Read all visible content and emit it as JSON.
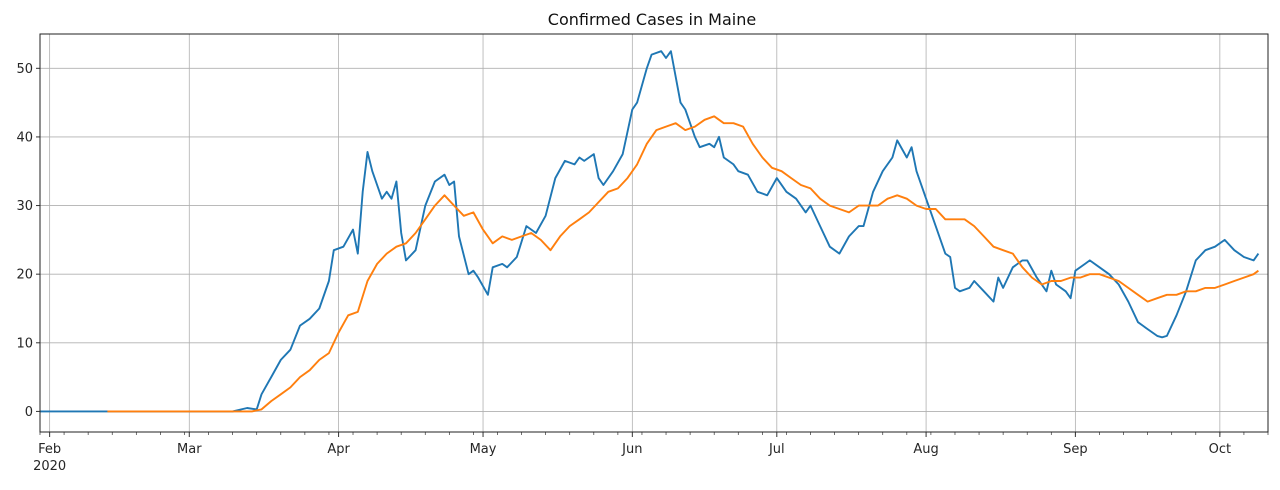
{
  "chart_data": {
    "type": "line",
    "title": "Confirmed Cases in  Maine",
    "xlabel": "",
    "ylabel": "",
    "grid": true,
    "xlim": [
      "2020-01-30",
      "2020-10-11"
    ],
    "ylim": [
      -3,
      55
    ],
    "yticks": [
      0,
      10,
      20,
      30,
      40,
      50
    ],
    "xticks": [
      {
        "date": "2020-02-01",
        "label": "Feb",
        "sublabel": "2020"
      },
      {
        "date": "2020-03-01",
        "label": "Mar"
      },
      {
        "date": "2020-04-01",
        "label": "Apr"
      },
      {
        "date": "2020-05-01",
        "label": "May"
      },
      {
        "date": "2020-06-01",
        "label": "Jun"
      },
      {
        "date": "2020-07-01",
        "label": "Jul"
      },
      {
        "date": "2020-08-01",
        "label": "Aug"
      },
      {
        "date": "2020-09-01",
        "label": "Sep"
      },
      {
        "date": "2020-10-01",
        "label": "Oct"
      }
    ],
    "series": [
      {
        "color": "#1f77b4",
        "points": [
          [
            "2020-01-30",
            0
          ],
          [
            "2020-02-14",
            0
          ],
          [
            "2020-03-10",
            0
          ],
          [
            "2020-03-13",
            0.5
          ],
          [
            "2020-03-15",
            0.3
          ],
          [
            "2020-03-16",
            2.5
          ],
          [
            "2020-03-18",
            5
          ],
          [
            "2020-03-20",
            7.5
          ],
          [
            "2020-03-22",
            9
          ],
          [
            "2020-03-24",
            12.5
          ],
          [
            "2020-03-26",
            13.5
          ],
          [
            "2020-03-28",
            15
          ],
          [
            "2020-03-30",
            19
          ],
          [
            "2020-03-31",
            23.5
          ],
          [
            "2020-04-02",
            24
          ],
          [
            "2020-04-04",
            26.5
          ],
          [
            "2020-04-05",
            23
          ],
          [
            "2020-04-06",
            32
          ],
          [
            "2020-04-07",
            37.8
          ],
          [
            "2020-04-08",
            35
          ],
          [
            "2020-04-10",
            31
          ],
          [
            "2020-04-11",
            32
          ],
          [
            "2020-04-12",
            31
          ],
          [
            "2020-04-13",
            33.5
          ],
          [
            "2020-04-14",
            26
          ],
          [
            "2020-04-15",
            22
          ],
          [
            "2020-04-17",
            23.5
          ],
          [
            "2020-04-19",
            30
          ],
          [
            "2020-04-21",
            33.5
          ],
          [
            "2020-04-23",
            34.5
          ],
          [
            "2020-04-24",
            33
          ],
          [
            "2020-04-25",
            33.5
          ],
          [
            "2020-04-26",
            25.5
          ],
          [
            "2020-04-28",
            20
          ],
          [
            "2020-04-29",
            20.5
          ],
          [
            "2020-04-30",
            19.5
          ],
          [
            "2020-05-02",
            17
          ],
          [
            "2020-05-03",
            21
          ],
          [
            "2020-05-05",
            21.5
          ],
          [
            "2020-05-06",
            21
          ],
          [
            "2020-05-08",
            22.5
          ],
          [
            "2020-05-10",
            27
          ],
          [
            "2020-05-12",
            26
          ],
          [
            "2020-05-14",
            28.5
          ],
          [
            "2020-05-16",
            34
          ],
          [
            "2020-05-18",
            36.5
          ],
          [
            "2020-05-20",
            36
          ],
          [
            "2020-05-21",
            37
          ],
          [
            "2020-05-22",
            36.5
          ],
          [
            "2020-05-24",
            37.5
          ],
          [
            "2020-05-25",
            34
          ],
          [
            "2020-05-26",
            33
          ],
          [
            "2020-05-28",
            35
          ],
          [
            "2020-05-30",
            37.5
          ],
          [
            "2020-06-01",
            44
          ],
          [
            "2020-06-02",
            45
          ],
          [
            "2020-06-04",
            50
          ],
          [
            "2020-06-05",
            52
          ],
          [
            "2020-06-07",
            52.5
          ],
          [
            "2020-06-08",
            51.5
          ],
          [
            "2020-06-09",
            52.5
          ],
          [
            "2020-06-11",
            45
          ],
          [
            "2020-06-12",
            44
          ],
          [
            "2020-06-14",
            40
          ],
          [
            "2020-06-15",
            38.5
          ],
          [
            "2020-06-17",
            39
          ],
          [
            "2020-06-18",
            38.5
          ],
          [
            "2020-06-19",
            40
          ],
          [
            "2020-06-20",
            37
          ],
          [
            "2020-06-22",
            36
          ],
          [
            "2020-06-23",
            35
          ],
          [
            "2020-06-25",
            34.5
          ],
          [
            "2020-06-27",
            32
          ],
          [
            "2020-06-29",
            31.5
          ],
          [
            "2020-07-01",
            34
          ],
          [
            "2020-07-03",
            32
          ],
          [
            "2020-07-05",
            31
          ],
          [
            "2020-07-07",
            29
          ],
          [
            "2020-07-08",
            30
          ],
          [
            "2020-07-10",
            27
          ],
          [
            "2020-07-12",
            24
          ],
          [
            "2020-07-14",
            23
          ],
          [
            "2020-07-16",
            25.5
          ],
          [
            "2020-07-18",
            27
          ],
          [
            "2020-07-19",
            27
          ],
          [
            "2020-07-21",
            32
          ],
          [
            "2020-07-23",
            35
          ],
          [
            "2020-07-25",
            37
          ],
          [
            "2020-07-26",
            39.5
          ],
          [
            "2020-07-28",
            37
          ],
          [
            "2020-07-29",
            38.5
          ],
          [
            "2020-07-30",
            35
          ],
          [
            "2020-08-01",
            31
          ],
          [
            "2020-08-03",
            27
          ],
          [
            "2020-08-05",
            23
          ],
          [
            "2020-08-06",
            22.5
          ],
          [
            "2020-08-07",
            18
          ],
          [
            "2020-08-08",
            17.5
          ],
          [
            "2020-08-10",
            18
          ],
          [
            "2020-08-11",
            19
          ],
          [
            "2020-08-13",
            17.5
          ],
          [
            "2020-08-15",
            16
          ],
          [
            "2020-08-16",
            19.5
          ],
          [
            "2020-08-17",
            18
          ],
          [
            "2020-08-19",
            21
          ],
          [
            "2020-08-21",
            22
          ],
          [
            "2020-08-22",
            22
          ],
          [
            "2020-08-24",
            19.5
          ],
          [
            "2020-08-26",
            17.5
          ],
          [
            "2020-08-27",
            20.5
          ],
          [
            "2020-08-28",
            18.5
          ],
          [
            "2020-08-30",
            17.5
          ],
          [
            "2020-08-31",
            16.5
          ],
          [
            "2020-09-01",
            20.5
          ],
          [
            "2020-09-03",
            21.5
          ],
          [
            "2020-09-04",
            22
          ],
          [
            "2020-09-06",
            21
          ],
          [
            "2020-09-08",
            20
          ],
          [
            "2020-09-10",
            18.5
          ],
          [
            "2020-09-12",
            16
          ],
          [
            "2020-09-14",
            13
          ],
          [
            "2020-09-16",
            12
          ],
          [
            "2020-09-18",
            11
          ],
          [
            "2020-09-19",
            10.8
          ],
          [
            "2020-09-20",
            11
          ],
          [
            "2020-09-22",
            14
          ],
          [
            "2020-09-24",
            17.5
          ],
          [
            "2020-09-26",
            22
          ],
          [
            "2020-09-28",
            23.5
          ],
          [
            "2020-09-30",
            24
          ],
          [
            "2020-10-02",
            25
          ],
          [
            "2020-10-04",
            23.5
          ],
          [
            "2020-10-06",
            22.5
          ],
          [
            "2020-10-08",
            22
          ],
          [
            "2020-10-09",
            23
          ]
        ]
      },
      {
        "color": "#ff7f0e",
        "points": [
          [
            "2020-02-13",
            0
          ],
          [
            "2020-03-14",
            0
          ],
          [
            "2020-03-16",
            0.3
          ],
          [
            "2020-03-18",
            1.5
          ],
          [
            "2020-03-20",
            2.5
          ],
          [
            "2020-03-22",
            3.5
          ],
          [
            "2020-03-24",
            5
          ],
          [
            "2020-03-26",
            6
          ],
          [
            "2020-03-28",
            7.5
          ],
          [
            "2020-03-30",
            8.5
          ],
          [
            "2020-04-01",
            11.5
          ],
          [
            "2020-04-03",
            14
          ],
          [
            "2020-04-05",
            14.5
          ],
          [
            "2020-04-07",
            19
          ],
          [
            "2020-04-09",
            21.5
          ],
          [
            "2020-04-11",
            23
          ],
          [
            "2020-04-13",
            24
          ],
          [
            "2020-04-15",
            24.5
          ],
          [
            "2020-04-17",
            26
          ],
          [
            "2020-04-19",
            28
          ],
          [
            "2020-04-21",
            30
          ],
          [
            "2020-04-23",
            31.5
          ],
          [
            "2020-04-25",
            30
          ],
          [
            "2020-04-27",
            28.5
          ],
          [
            "2020-04-29",
            29
          ],
          [
            "2020-05-01",
            26.5
          ],
          [
            "2020-05-03",
            24.5
          ],
          [
            "2020-05-05",
            25.5
          ],
          [
            "2020-05-07",
            25
          ],
          [
            "2020-05-09",
            25.5
          ],
          [
            "2020-05-11",
            26
          ],
          [
            "2020-05-13",
            25
          ],
          [
            "2020-05-15",
            23.5
          ],
          [
            "2020-05-17",
            25.5
          ],
          [
            "2020-05-19",
            27
          ],
          [
            "2020-05-21",
            28
          ],
          [
            "2020-05-23",
            29
          ],
          [
            "2020-05-25",
            30.5
          ],
          [
            "2020-05-27",
            32
          ],
          [
            "2020-05-29",
            32.5
          ],
          [
            "2020-05-31",
            34
          ],
          [
            "2020-06-02",
            36
          ],
          [
            "2020-06-04",
            39
          ],
          [
            "2020-06-06",
            41
          ],
          [
            "2020-06-08",
            41.5
          ],
          [
            "2020-06-10",
            42
          ],
          [
            "2020-06-12",
            41
          ],
          [
            "2020-06-14",
            41.5
          ],
          [
            "2020-06-16",
            42.5
          ],
          [
            "2020-06-18",
            43
          ],
          [
            "2020-06-20",
            42
          ],
          [
            "2020-06-22",
            42
          ],
          [
            "2020-06-24",
            41.5
          ],
          [
            "2020-06-26",
            39
          ],
          [
            "2020-06-28",
            37
          ],
          [
            "2020-06-30",
            35.5
          ],
          [
            "2020-07-02",
            35
          ],
          [
            "2020-07-04",
            34
          ],
          [
            "2020-07-06",
            33
          ],
          [
            "2020-07-08",
            32.5
          ],
          [
            "2020-07-10",
            31
          ],
          [
            "2020-07-12",
            30
          ],
          [
            "2020-07-14",
            29.5
          ],
          [
            "2020-07-16",
            29
          ],
          [
            "2020-07-18",
            30
          ],
          [
            "2020-07-20",
            30
          ],
          [
            "2020-07-22",
            30
          ],
          [
            "2020-07-24",
            31
          ],
          [
            "2020-07-26",
            31.5
          ],
          [
            "2020-07-28",
            31
          ],
          [
            "2020-07-30",
            30
          ],
          [
            "2020-08-01",
            29.5
          ],
          [
            "2020-08-03",
            29.5
          ],
          [
            "2020-08-05",
            28
          ],
          [
            "2020-08-07",
            28
          ],
          [
            "2020-08-09",
            28
          ],
          [
            "2020-08-11",
            27
          ],
          [
            "2020-08-13",
            25.5
          ],
          [
            "2020-08-15",
            24
          ],
          [
            "2020-08-17",
            23.5
          ],
          [
            "2020-08-19",
            23
          ],
          [
            "2020-08-21",
            21
          ],
          [
            "2020-08-23",
            19.5
          ],
          [
            "2020-08-25",
            18.5
          ],
          [
            "2020-08-27",
            19
          ],
          [
            "2020-08-29",
            19
          ],
          [
            "2020-08-31",
            19.5
          ],
          [
            "2020-09-02",
            19.5
          ],
          [
            "2020-09-04",
            20
          ],
          [
            "2020-09-06",
            20
          ],
          [
            "2020-09-08",
            19.5
          ],
          [
            "2020-09-10",
            19
          ],
          [
            "2020-09-12",
            18
          ],
          [
            "2020-09-14",
            17
          ],
          [
            "2020-09-16",
            16
          ],
          [
            "2020-09-18",
            16.5
          ],
          [
            "2020-09-20",
            17
          ],
          [
            "2020-09-22",
            17
          ],
          [
            "2020-09-24",
            17.5
          ],
          [
            "2020-09-26",
            17.5
          ],
          [
            "2020-09-28",
            18
          ],
          [
            "2020-09-30",
            18
          ],
          [
            "2020-10-02",
            18.5
          ],
          [
            "2020-10-04",
            19
          ],
          [
            "2020-10-06",
            19.5
          ],
          [
            "2020-10-08",
            20
          ],
          [
            "2020-10-09",
            20.5
          ]
        ]
      }
    ]
  }
}
